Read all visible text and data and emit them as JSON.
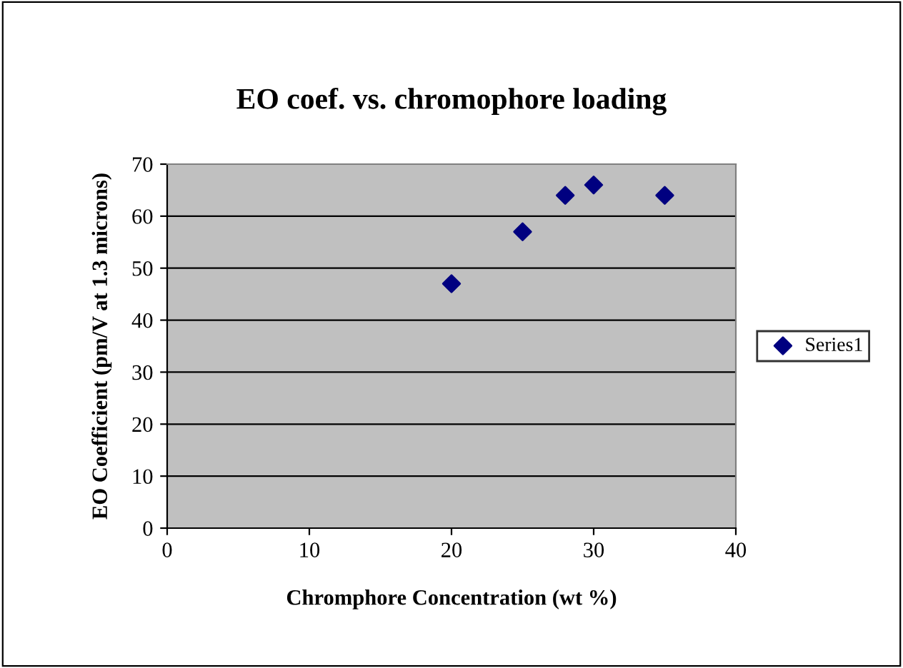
{
  "chart_data": {
    "type": "scatter",
    "title": "EO coef. vs. chromophore loading",
    "xlabel": "Chromphore Concentration (wt %)",
    "ylabel": "EO Coefficient (pm/V at 1.3 microns)",
    "x": [
      20,
      25,
      28,
      30,
      35
    ],
    "series": [
      {
        "name": "Series1",
        "color": "#000080",
        "values": [
          47,
          57,
          64,
          66,
          64
        ]
      }
    ],
    "xlim": [
      0,
      40
    ],
    "xticks": [
      0,
      10,
      20,
      30,
      40
    ],
    "ylim": [
      0,
      70
    ],
    "yticks": [
      0,
      10,
      20,
      30,
      40,
      50,
      60,
      70
    ],
    "grid": "y",
    "legend": "right",
    "marker": "diamond"
  }
}
